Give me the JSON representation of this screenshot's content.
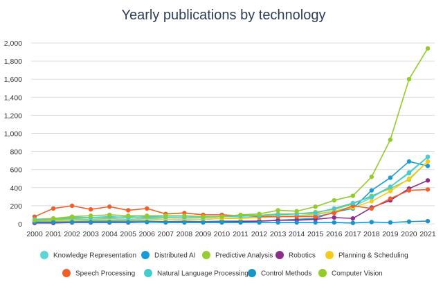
{
  "chart_data": {
    "type": "line",
    "title": "Yearly publications by technology",
    "xlabel": "",
    "ylabel": "",
    "ylim": [
      0,
      2000
    ],
    "y_ticks": [
      "0",
      "200",
      "400",
      "600",
      "800",
      "1,000",
      "1,200",
      "1,400",
      "1,600",
      "1,800",
      "2,000"
    ],
    "y_tick_values": [
      0,
      200,
      400,
      600,
      800,
      1000,
      1200,
      1400,
      1600,
      1800,
      2000
    ],
    "categories": [
      "2000",
      "2001",
      "2002",
      "2003",
      "2004",
      "2005",
      "2006",
      "2007",
      "2008",
      "2009",
      "2010",
      "2011",
      "2012",
      "2013",
      "2014",
      "2015",
      "2016",
      "2017",
      "2018",
      "2019",
      "2020",
      "2021"
    ],
    "grid": true,
    "legend_position": "bottom",
    "series": [
      {
        "name": "Knowledge Representation",
        "color": "#5fd4d6",
        "values": [
          30,
          40,
          50,
          50,
          60,
          50,
          60,
          50,
          55,
          50,
          60,
          70,
          70,
          80,
          90,
          100,
          140,
          190,
          290,
          410,
          570,
          740
        ]
      },
      {
        "name": "Distributed AI",
        "color": "#1a9bd7",
        "values": [
          20,
          20,
          30,
          30,
          30,
          30,
          30,
          25,
          30,
          25,
          30,
          30,
          30,
          40,
          50,
          60,
          130,
          170,
          370,
          510,
          690,
          640
        ]
      },
      {
        "name": "Predictive Analysis",
        "color": "#99cc33",
        "values": [
          40,
          50,
          60,
          70,
          70,
          80,
          70,
          70,
          75,
          70,
          80,
          90,
          95,
          110,
          110,
          130,
          160,
          220,
          310,
          390,
          490,
          690
        ]
      },
      {
        "name": "Robotics",
        "color": "#8e2c8c",
        "values": [
          10,
          10,
          15,
          15,
          15,
          15,
          20,
          20,
          20,
          20,
          20,
          25,
          30,
          40,
          40,
          50,
          70,
          60,
          180,
          260,
          390,
          480
        ]
      },
      {
        "name": "Planning & Scheduling",
        "color": "#f5cc1d",
        "values": [
          20,
          30,
          35,
          40,
          45,
          40,
          45,
          50,
          50,
          50,
          60,
          60,
          70,
          80,
          90,
          110,
          140,
          180,
          250,
          360,
          500,
          690
        ]
      },
      {
        "name": "Speech Processing",
        "color": "#f05f29",
        "values": [
          80,
          170,
          200,
          160,
          190,
          150,
          170,
          110,
          120,
          100,
          100,
          90,
          80,
          80,
          80,
          80,
          120,
          200,
          170,
          280,
          370,
          380
        ]
      },
      {
        "name": "Natural Language Processing",
        "color": "#45ccd1",
        "values": [
          50,
          60,
          70,
          70,
          80,
          70,
          80,
          75,
          75,
          70,
          80,
          85,
          90,
          100,
          110,
          120,
          170,
          230,
          300,
          410,
          560,
          740
        ]
      },
      {
        "name": "Control Methods",
        "color": "#1a95c8",
        "values": [
          20,
          20,
          20,
          20,
          20,
          20,
          20,
          15,
          15,
          15,
          15,
          15,
          15,
          15,
          15,
          15,
          15,
          10,
          20,
          15,
          25,
          30
        ]
      },
      {
        "name": "Computer Vision",
        "color": "#93cb2a",
        "values": [
          40,
          60,
          80,
          90,
          100,
          90,
          90,
          90,
          90,
          80,
          80,
          100,
          110,
          150,
          140,
          190,
          260,
          310,
          520,
          930,
          1600,
          1940
        ]
      }
    ]
  }
}
